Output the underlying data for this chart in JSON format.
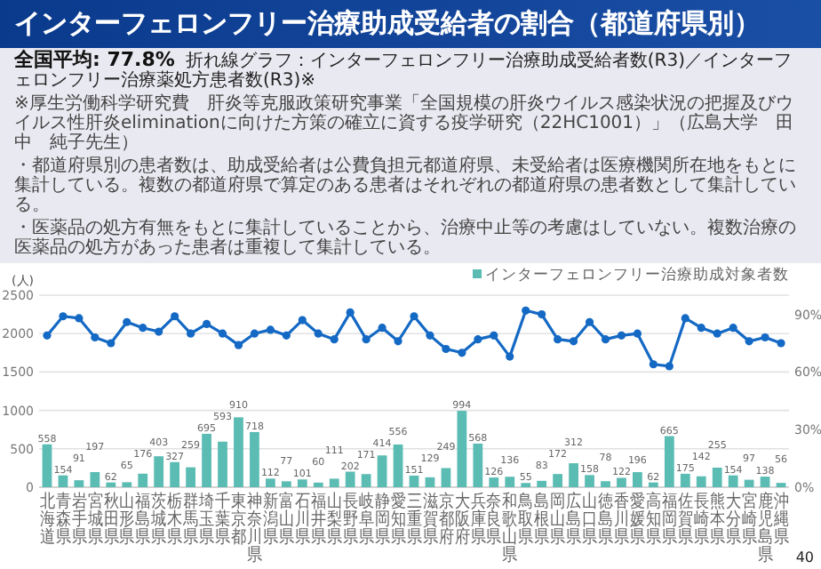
{
  "chart_data": {
    "type": "bar",
    "title": "インターフェロンフリー治療助成受給者の割合（都道府県別）",
    "subtitle": "全国平均: 77.8%",
    "annotations": [
      "折れ線グラフ：インターフェロンフリー治療助成受給者数(R3)／インターフェロンフリー治療薬処方患者数(R3)※",
      "※厚生労働科学研究費　肝炎等克服政策研究事業「全国規模の肝炎ウイルス感染状況の把握及びウイルス性肝炎eliminationに向けた方策の確立に資する疫学研究（22HC1001）」（広島大学　田中　純子先生）",
      "・都道府県別の患者数は、助成受給者は公費負担元都道府県、未受給者は医療機関所在地をもとに集計している。複数の都道府県で算定のある患者はそれぞれの都道府県の患者数として集計している。",
      "・医薬品の処方有無をもとに集計していることから、治療中止等の考慮はしていない。複数治療の医薬品の処方があった患者は重複して集計している。",
      "40"
    ],
    "ylabel": "(人)",
    "categories": [
      "北海道",
      "青森県",
      "岩手県",
      "宮城県",
      "秋田県",
      "山形県",
      "福島県",
      "茨城県",
      "栃木県",
      "群馬県",
      "埼玉県",
      "千葉県",
      "東京都",
      "神奈川県",
      "新潟県",
      "富山県",
      "石川県",
      "福井県",
      "山梨県",
      "長野県",
      "岐阜県",
      "静岡県",
      "愛知県",
      "三重県",
      "滋賀県",
      "京都府",
      "大阪府",
      "兵庫県",
      "奈良県",
      "和歌山県",
      "鳥取県",
      "島根県",
      "岡山県",
      "広島県",
      "山口県",
      "徳島県",
      "香川県",
      "愛媛県",
      "高知県",
      "福岡県",
      "佐賀県",
      "長崎県",
      "熊本県",
      "大分県",
      "宮崎県",
      "鹿児島県",
      "沖縄県"
    ],
    "series": [
      {
        "name": "インターフェロンフリー治療助成対象者数",
        "color": "#5bbcb4",
        "values": [
          558,
          154,
          91,
          197,
          62,
          65,
          176,
          403,
          327,
          259,
          695,
          593,
          910,
          718,
          112,
          77,
          101,
          60,
          111,
          202,
          171,
          414,
          556,
          151,
          129,
          249,
          994,
          568,
          126,
          136,
          55,
          83,
          172,
          312,
          158,
          78,
          122,
          196,
          62,
          665,
          175,
          142,
          255,
          154,
          97,
          138,
          56
        ],
        "value_labels": [
          "558",
          "154",
          "91",
          "197",
          "62",
          "65",
          "176",
          "403",
          "327",
          "259",
          "695",
          "593",
          "910",
          "718",
          "112",
          "77",
          "101",
          "60",
          "111",
          "202",
          "171",
          "414",
          "556",
          "151",
          "129",
          "249",
          "994",
          "568",
          "126",
          "136",
          "55",
          "83",
          "172",
          "312",
          "158",
          "78",
          "122",
          "196",
          "62",
          "665",
          "175",
          "142",
          "255",
          "154",
          "97",
          "138",
          "56"
        ]
      },
      {
        "type": "line",
        "axis": "y2",
        "color": "#1469c4",
        "marker": "circle",
        "line_style": "solid",
        "values": [
          79,
          89,
          88,
          78,
          75,
          86,
          83,
          81,
          89,
          80,
          85,
          80,
          74,
          80,
          82,
          79,
          87,
          80,
          77,
          91,
          77,
          83,
          76,
          89,
          79,
          72,
          70,
          77,
          79,
          68,
          92,
          90,
          77,
          76,
          86,
          77,
          79,
          80,
          64,
          63,
          88,
          83,
          80,
          83,
          76,
          78,
          75
        ]
      }
    ],
    "ylim": [
      0,
      2500
    ],
    "yticks": [
      0,
      500,
      1000,
      1500,
      2000,
      2500
    ],
    "y2lim": [
      0,
      100
    ],
    "y2ticks": [
      {
        "value": 0,
        "label": "0%"
      },
      {
        "value": 30,
        "label": "30%"
      },
      {
        "value": 60,
        "label": "60%"
      },
      {
        "value": 90,
        "label": "90%"
      }
    ],
    "grid": "y",
    "legend": "top right"
  }
}
